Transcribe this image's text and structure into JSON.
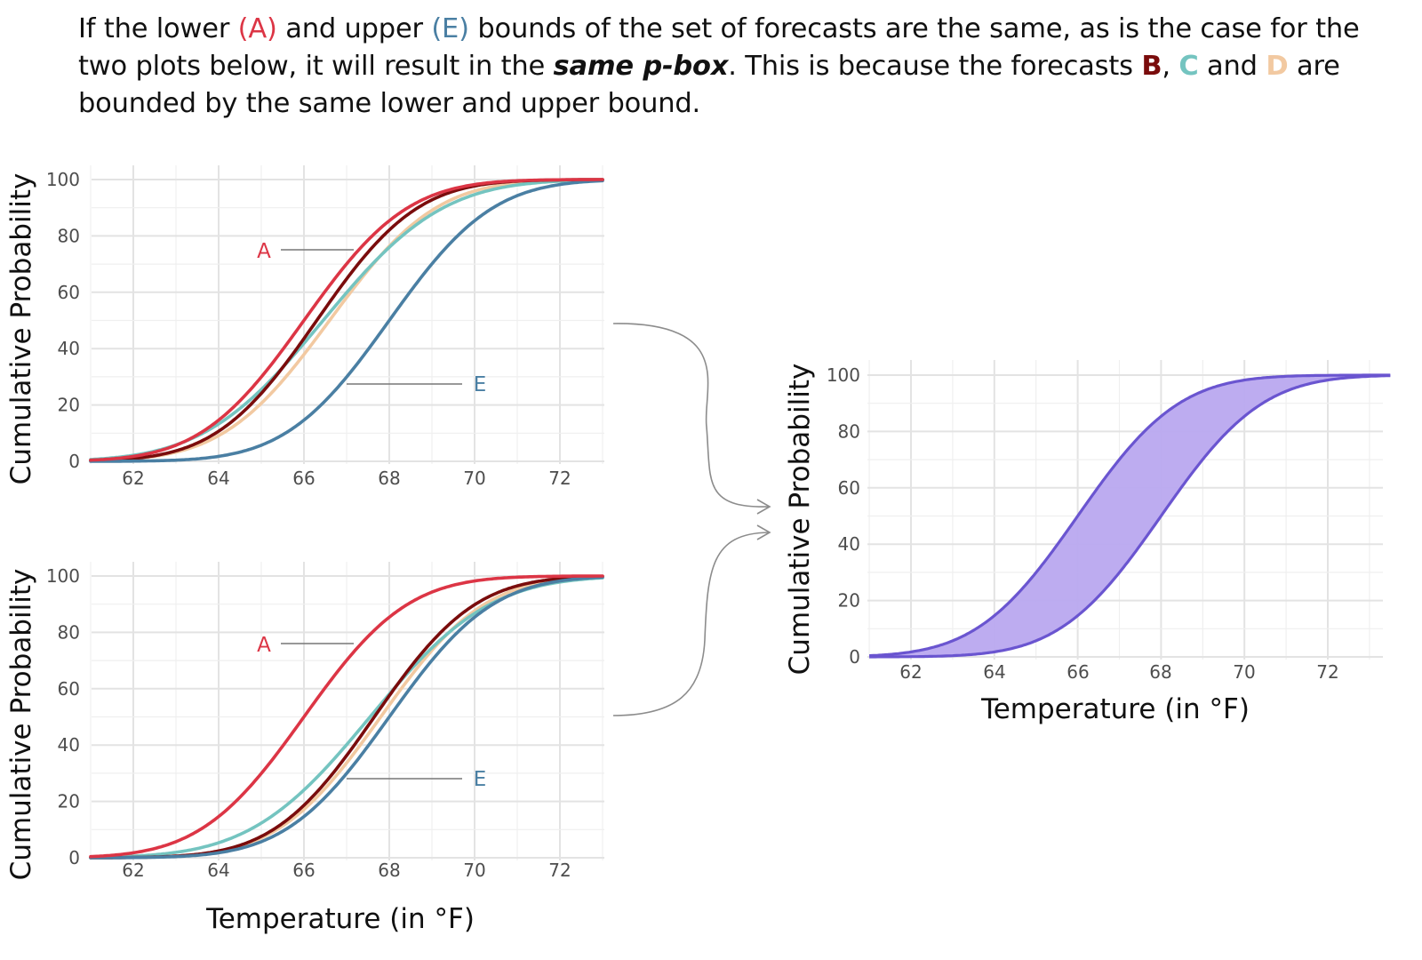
{
  "caption": {
    "t1": "If the lower ",
    "a": "(A)",
    "t2": " and upper ",
    "e": "(E)",
    "t3": " bounds of the set of forecasts are the same, as is the case for the two plots below, it will result in the ",
    "em": "same p-box",
    "t4": ". This is because the forecasts ",
    "b": "B",
    "t5": ", ",
    "c": "C",
    "t6": " and ",
    "d": "D",
    "t7": " are bounded by the same lower and upper bound."
  },
  "colors": {
    "A": "#dc3545",
    "B": "#7a0c0c",
    "C": "#74c4c0",
    "D": "#f2c9a1",
    "E": "#4a7fa3",
    "pbox_fill": "#b9a8ef",
    "pbox_line": "#6a55d0"
  },
  "chart_data": [
    {
      "type": "line",
      "xlabel": "",
      "ylabel": "Cumulative Probability",
      "xlim": [
        61,
        73
      ],
      "ylim": [
        0,
        100
      ],
      "xticks": [
        62,
        64,
        66,
        68,
        70,
        72
      ],
      "yticks": [
        0,
        20,
        40,
        60,
        80,
        100
      ],
      "grid": true,
      "annotations": [
        {
          "text": "A",
          "series": "A",
          "at_x": 67.2
        },
        {
          "text": "E",
          "series": "E",
          "at_x": 67.0
        }
      ],
      "series": [
        {
          "name": "A",
          "distribution": "normal",
          "mean": 66.0,
          "sd": 1.9
        },
        {
          "name": "B",
          "distribution": "normal",
          "mean": 66.3,
          "sd": 1.85
        },
        {
          "name": "C",
          "distribution": "normal",
          "mean": 66.45,
          "sd": 2.2
        },
        {
          "name": "D",
          "distribution": "normal",
          "mean": 66.6,
          "sd": 1.95
        },
        {
          "name": "E",
          "distribution": "normal",
          "mean": 68.0,
          "sd": 1.9
        }
      ]
    },
    {
      "type": "line",
      "xlabel": "Temperature (in °F)",
      "ylabel": "Cumulative Probability",
      "xlim": [
        61,
        73
      ],
      "ylim": [
        0,
        100
      ],
      "xticks": [
        62,
        64,
        66,
        68,
        70,
        72
      ],
      "yticks": [
        0,
        20,
        40,
        60,
        80,
        100
      ],
      "grid": true,
      "annotations": [
        {
          "text": "A",
          "series": "A",
          "at_x": 67.2
        },
        {
          "text": "E",
          "series": "E",
          "at_x": 67.0
        }
      ],
      "series": [
        {
          "name": "A",
          "distribution": "normal",
          "mean": 66.0,
          "sd": 1.9
        },
        {
          "name": "B",
          "distribution": "normal",
          "mean": 67.65,
          "sd": 1.85
        },
        {
          "name": "C",
          "distribution": "normal",
          "mean": 67.55,
          "sd": 2.2
        },
        {
          "name": "D",
          "distribution": "normal",
          "mean": 67.8,
          "sd": 1.9
        },
        {
          "name": "E",
          "distribution": "normal",
          "mean": 68.0,
          "sd": 1.9
        }
      ]
    },
    {
      "type": "area",
      "xlabel": "Temperature (in °F)",
      "ylabel": "Cumulative Probability",
      "xlim": [
        61,
        73.5
      ],
      "ylim": [
        0,
        100
      ],
      "xticks": [
        62,
        64,
        66,
        68,
        70,
        72
      ],
      "yticks": [
        0,
        20,
        40,
        60,
        80,
        100
      ],
      "grid": true,
      "series": [
        {
          "name": "",
          "role": "upper bound",
          "distribution": "normal",
          "mean": 66.0,
          "sd": 1.9
        },
        {
          "name": "",
          "role": "lower bound",
          "distribution": "normal",
          "mean": 68.0,
          "sd": 1.9
        }
      ]
    }
  ]
}
